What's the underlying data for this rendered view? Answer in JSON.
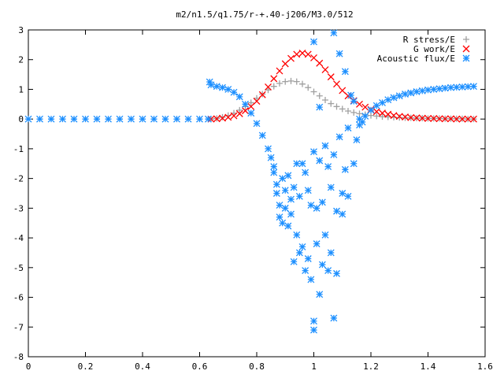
{
  "chart_data": {
    "type": "scatter",
    "title": "m2/n1.5/q1.75/r-+.40-j206/M3.0/512",
    "xlabel": "",
    "ylabel": "",
    "xlim": [
      0,
      1.6
    ],
    "ylim": [
      -8,
      3
    ],
    "x_ticks": [
      "0",
      "0.2",
      "0.4",
      "0.6",
      "0.8",
      "1",
      "1.2",
      "1.4",
      "1.6"
    ],
    "y_ticks": [
      "3",
      "2",
      "1",
      "0",
      "-1",
      "-2",
      "-3",
      "-4",
      "-5",
      "-6",
      "-7",
      "-8"
    ],
    "grid": false,
    "legend_position": "top-right",
    "series": [
      {
        "name": "R stress/E",
        "marker": "plus",
        "color": "#a0a0a0",
        "points": [
          [
            0.64,
            0.0
          ],
          [
            0.66,
            0.02
          ],
          [
            0.68,
            0.06
          ],
          [
            0.7,
            0.12
          ],
          [
            0.72,
            0.2
          ],
          [
            0.74,
            0.3
          ],
          [
            0.76,
            0.42
          ],
          [
            0.78,
            0.55
          ],
          [
            0.8,
            0.7
          ],
          [
            0.82,
            0.84
          ],
          [
            0.84,
            0.98
          ],
          [
            0.86,
            1.1
          ],
          [
            0.88,
            1.2
          ],
          [
            0.9,
            1.26
          ],
          [
            0.92,
            1.28
          ],
          [
            0.94,
            1.26
          ],
          [
            0.96,
            1.18
          ],
          [
            0.98,
            1.06
          ],
          [
            1.0,
            0.92
          ],
          [
            1.02,
            0.78
          ],
          [
            1.04,
            0.64
          ],
          [
            1.06,
            0.52
          ],
          [
            1.08,
            0.42
          ],
          [
            1.1,
            0.34
          ],
          [
            1.12,
            0.27
          ],
          [
            1.14,
            0.22
          ],
          [
            1.16,
            0.18
          ],
          [
            1.18,
            0.15
          ],
          [
            1.2,
            0.12
          ],
          [
            1.22,
            0.1
          ],
          [
            1.24,
            0.08
          ],
          [
            1.26,
            0.07
          ],
          [
            1.28,
            0.06
          ],
          [
            1.3,
            0.05
          ],
          [
            1.32,
            0.04
          ],
          [
            1.34,
            0.04
          ],
          [
            1.36,
            0.03
          ],
          [
            1.38,
            0.03
          ],
          [
            1.4,
            0.02
          ],
          [
            1.42,
            0.02
          ],
          [
            1.44,
            0.02
          ],
          [
            1.46,
            0.01
          ],
          [
            1.48,
            0.01
          ],
          [
            1.5,
            0.01
          ],
          [
            1.52,
            0.01
          ],
          [
            1.54,
            0.0
          ],
          [
            1.56,
            0.0
          ]
        ]
      },
      {
        "name": "G work/E",
        "marker": "cross",
        "color": "#ff0000",
        "points": [
          [
            0.64,
            0.0
          ],
          [
            0.66,
            0.01
          ],
          [
            0.68,
            0.03
          ],
          [
            0.7,
            0.06
          ],
          [
            0.72,
            0.11
          ],
          [
            0.74,
            0.18
          ],
          [
            0.76,
            0.28
          ],
          [
            0.78,
            0.42
          ],
          [
            0.8,
            0.6
          ],
          [
            0.82,
            0.82
          ],
          [
            0.84,
            1.08
          ],
          [
            0.86,
            1.36
          ],
          [
            0.88,
            1.62
          ],
          [
            0.9,
            1.86
          ],
          [
            0.92,
            2.04
          ],
          [
            0.94,
            2.18
          ],
          [
            0.96,
            2.22
          ],
          [
            0.98,
            2.18
          ],
          [
            1.0,
            2.06
          ],
          [
            1.02,
            1.88
          ],
          [
            1.04,
            1.66
          ],
          [
            1.06,
            1.42
          ],
          [
            1.08,
            1.18
          ],
          [
            1.1,
            0.96
          ],
          [
            1.12,
            0.78
          ],
          [
            1.14,
            0.62
          ],
          [
            1.16,
            0.5
          ],
          [
            1.18,
            0.4
          ],
          [
            1.2,
            0.32
          ],
          [
            1.22,
            0.25
          ],
          [
            1.24,
            0.2
          ],
          [
            1.26,
            0.16
          ],
          [
            1.28,
            0.12
          ],
          [
            1.3,
            0.09
          ],
          [
            1.32,
            0.07
          ],
          [
            1.34,
            0.05
          ],
          [
            1.36,
            0.04
          ],
          [
            1.38,
            0.03
          ],
          [
            1.4,
            0.02
          ],
          [
            1.42,
            0.02
          ],
          [
            1.44,
            0.01
          ],
          [
            1.46,
            0.01
          ],
          [
            1.48,
            0.01
          ],
          [
            1.5,
            0.0
          ],
          [
            1.52,
            0.0
          ],
          [
            1.54,
            0.0
          ],
          [
            1.56,
            0.0
          ]
        ]
      },
      {
        "name": "Acoustic flux/E",
        "marker": "star",
        "color": "#1e90ff",
        "points": [
          [
            0.0,
            0.0
          ],
          [
            0.04,
            0.0
          ],
          [
            0.08,
            0.0
          ],
          [
            0.12,
            0.0
          ],
          [
            0.16,
            0.0
          ],
          [
            0.2,
            0.0
          ],
          [
            0.24,
            0.0
          ],
          [
            0.28,
            0.0
          ],
          [
            0.32,
            0.0
          ],
          [
            0.36,
            0.0
          ],
          [
            0.4,
            0.0
          ],
          [
            0.44,
            0.0
          ],
          [
            0.48,
            0.0
          ],
          [
            0.52,
            0.0
          ],
          [
            0.56,
            0.0
          ],
          [
            0.6,
            0.0
          ],
          [
            0.63,
            0.0
          ],
          [
            0.635,
            1.25
          ],
          [
            0.64,
            1.15
          ],
          [
            0.66,
            1.1
          ],
          [
            0.68,
            1.06
          ],
          [
            0.7,
            1.0
          ],
          [
            0.72,
            0.9
          ],
          [
            0.74,
            0.75
          ],
          [
            0.76,
            0.5
          ],
          [
            0.78,
            0.2
          ],
          [
            0.8,
            -0.15
          ],
          [
            0.82,
            -0.55
          ],
          [
            0.84,
            -1.0
          ],
          [
            0.85,
            -1.3
          ],
          [
            0.86,
            -1.6
          ],
          [
            0.86,
            -1.8
          ],
          [
            0.87,
            -2.2
          ],
          [
            0.87,
            -2.5
          ],
          [
            0.88,
            -2.9
          ],
          [
            0.88,
            -3.3
          ],
          [
            0.89,
            -3.5
          ],
          [
            0.89,
            -2.0
          ],
          [
            0.9,
            -2.4
          ],
          [
            0.9,
            -3.0
          ],
          [
            0.91,
            -3.6
          ],
          [
            0.91,
            -1.9
          ],
          [
            0.92,
            -2.7
          ],
          [
            0.92,
            -3.2
          ],
          [
            0.93,
            -4.8
          ],
          [
            0.93,
            -2.3
          ],
          [
            0.94,
            -1.5
          ],
          [
            0.94,
            -3.9
          ],
          [
            0.95,
            -4.5
          ],
          [
            0.95,
            -2.6
          ],
          [
            0.96,
            -1.5
          ],
          [
            0.96,
            -4.3
          ],
          [
            0.97,
            -5.1
          ],
          [
            0.97,
            -1.8
          ],
          [
            0.98,
            -2.4
          ],
          [
            0.98,
            -4.7
          ],
          [
            0.99,
            -2.9
          ],
          [
            0.99,
            -5.4
          ],
          [
            1.0,
            -7.1
          ],
          [
            1.0,
            -6.8
          ],
          [
            1.0,
            2.6
          ],
          [
            1.0,
            -1.1
          ],
          [
            1.01,
            -3.0
          ],
          [
            1.01,
            -4.2
          ],
          [
            1.02,
            -5.9
          ],
          [
            1.02,
            -1.4
          ],
          [
            1.02,
            0.4
          ],
          [
            1.03,
            -2.8
          ],
          [
            1.03,
            -4.9
          ],
          [
            1.04,
            -0.9
          ],
          [
            1.04,
            -3.9
          ],
          [
            1.05,
            -1.6
          ],
          [
            1.05,
            -5.1
          ],
          [
            1.06,
            -2.3
          ],
          [
            1.06,
            -4.5
          ],
          [
            1.07,
            2.9
          ],
          [
            1.07,
            -6.7
          ],
          [
            1.07,
            -1.2
          ],
          [
            1.08,
            -3.1
          ],
          [
            1.08,
            -5.2
          ],
          [
            1.09,
            2.2
          ],
          [
            1.09,
            -0.6
          ],
          [
            1.1,
            -2.5
          ],
          [
            1.1,
            -3.2
          ],
          [
            1.11,
            1.6
          ],
          [
            1.11,
            -1.7
          ],
          [
            1.12,
            -0.3
          ],
          [
            1.12,
            -2.6
          ],
          [
            1.13,
            0.8
          ],
          [
            1.14,
            0.6
          ],
          [
            1.14,
            -1.5
          ],
          [
            1.15,
            -0.7
          ],
          [
            1.16,
            0.0
          ],
          [
            1.16,
            -0.2
          ],
          [
            1.17,
            -0.1
          ],
          [
            1.18,
            0.1
          ],
          [
            1.2,
            0.3
          ],
          [
            1.22,
            0.45
          ],
          [
            1.24,
            0.55
          ],
          [
            1.26,
            0.65
          ],
          [
            1.28,
            0.72
          ],
          [
            1.3,
            0.78
          ],
          [
            1.32,
            0.84
          ],
          [
            1.34,
            0.88
          ],
          [
            1.36,
            0.92
          ],
          [
            1.38,
            0.95
          ],
          [
            1.4,
            0.98
          ],
          [
            1.42,
            1.0
          ],
          [
            1.44,
            1.02
          ],
          [
            1.46,
            1.04
          ],
          [
            1.48,
            1.06
          ],
          [
            1.5,
            1.07
          ],
          [
            1.52,
            1.08
          ],
          [
            1.54,
            1.09
          ],
          [
            1.56,
            1.1
          ]
        ]
      }
    ]
  }
}
